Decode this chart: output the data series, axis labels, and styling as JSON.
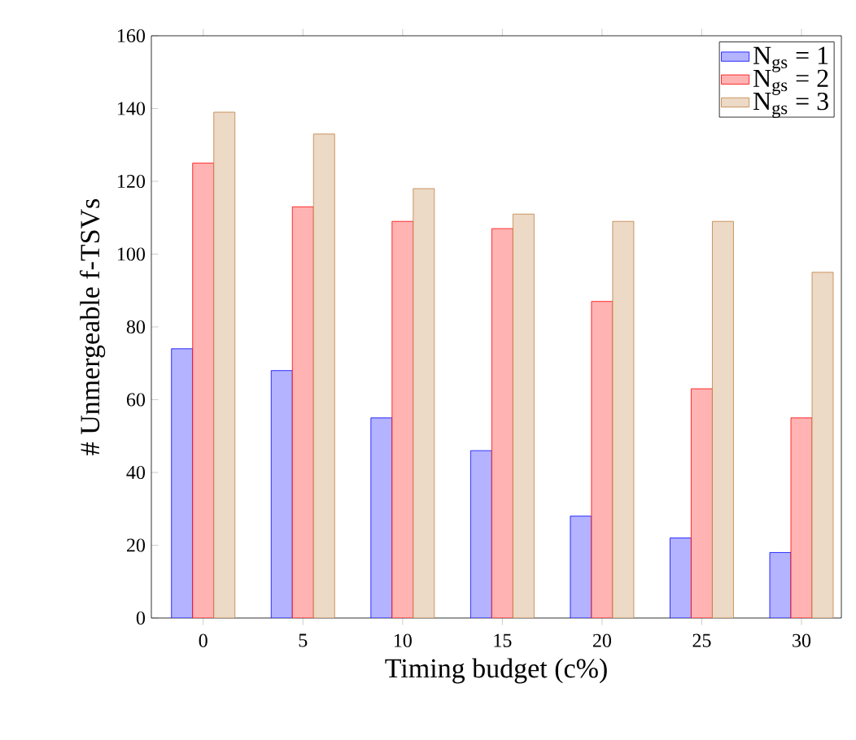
{
  "chart_data": {
    "type": "bar",
    "xlabel": "Timing budget (c%)",
    "ylabel": "# Unmergeable f-TSVs",
    "x": [
      0,
      5,
      10,
      15,
      20,
      25,
      30
    ],
    "series": [
      {
        "name": "N$_{gs}$ = 1",
        "color": "#b3b3ff",
        "values": [
          74,
          68,
          55,
          46,
          28,
          22,
          18
        ]
      },
      {
        "name": "N$_{gs}$ = 2",
        "color": "#ffb3b3",
        "values": [
          125,
          113,
          109,
          107,
          87,
          63,
          55
        ]
      },
      {
        "name": "N$_{gs}$ = 3",
        "color": "#ecd9c6",
        "values": [
          139,
          133,
          118,
          111,
          109,
          109,
          95
        ]
      }
    ],
    "xlim": [
      -2.6,
      32
    ],
    "xticks": [
      0,
      5,
      10,
      15,
      20,
      25,
      30
    ],
    "ylim": [
      0,
      160
    ],
    "yticks": [
      0,
      20,
      40,
      60,
      80,
      100,
      120,
      140,
      160
    ],
    "legend": "top right",
    "grid": false
  }
}
